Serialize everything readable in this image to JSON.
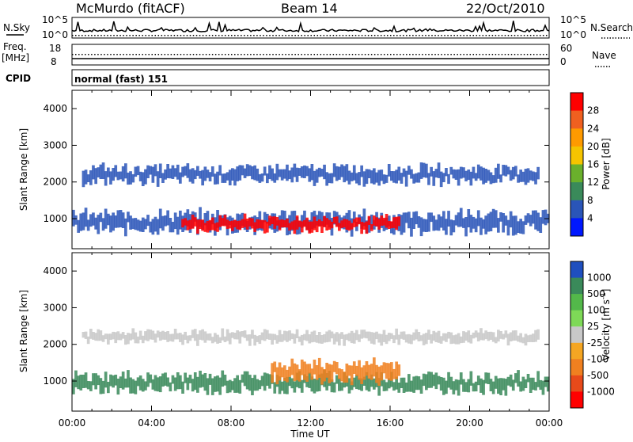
{
  "header": {
    "station": "McMurdo (fitACF)",
    "beam": "Beam 14",
    "date": "22/Oct/2010"
  },
  "top_panels": {
    "nsky_label": "N.Sky",
    "nsky_ticks": [
      "10^5",
      "10^0"
    ],
    "nsearch_label": "N.Search",
    "nsearch_ticks": [
      "10^5",
      "10^0"
    ],
    "freq_label_1": "Freq.",
    "freq_label_2": "[MHz]",
    "freq_ticks": [
      "18",
      "8"
    ],
    "nave_label": "Nave",
    "nave_ticks": [
      "60",
      "0"
    ],
    "cpid_label": "CPID",
    "cpid_value": "normal (fast) 151"
  },
  "chart_data": [
    {
      "type": "heatmap",
      "name": "power-panel",
      "ylabel": "Slant Range [km]",
      "xlabel": "",
      "x_ticks": [
        "00:00",
        "04:00",
        "08:00",
        "12:00",
        "16:00",
        "20:00",
        "00:00"
      ],
      "x_range_hours": [
        0,
        24
      ],
      "ylim": [
        180,
        4500
      ],
      "y_ticks": [
        1000,
        2000,
        3000,
        4000
      ],
      "colorbar": {
        "label": "Power [dB]",
        "ticks": [
          "28",
          "24",
          "20",
          "16",
          "12",
          "8",
          "4"
        ],
        "colors": [
          "#ff0000",
          "#f06020",
          "#ff9a00",
          "#f5c400",
          "#6ab02c",
          "#3a8a5a",
          "#2a55b8",
          "#0018ff"
        ]
      },
      "bands": [
        {
          "start_h": 0.0,
          "end_h": 24.0,
          "range_center_km": 900,
          "range_width_km": 500,
          "color": "#2a55b8"
        },
        {
          "start_h": 0.5,
          "end_h": 23.5,
          "range_center_km": 2200,
          "range_width_km": 420,
          "color": "#2a55b8"
        },
        {
          "start_h": 5.5,
          "end_h": 16.5,
          "range_center_km": 850,
          "range_width_km": 350,
          "color": "#ff0000"
        }
      ]
    },
    {
      "type": "heatmap",
      "name": "velocity-panel",
      "ylabel": "Slant Range [km]",
      "xlabel": "Time UT",
      "x_ticks": [
        "00:00",
        "04:00",
        "08:00",
        "12:00",
        "16:00",
        "20:00",
        "00:00"
      ],
      "x_range_hours": [
        0,
        24
      ],
      "ylim": [
        180,
        4500
      ],
      "y_ticks": [
        1000,
        2000,
        3000,
        4000
      ],
      "colorbar": {
        "label": "Velocity [m s",
        "label_sup": "-1",
        "label_end": "]",
        "ticks": [
          "1000",
          "500",
          "100",
          "25",
          "-25",
          "-100",
          "-500",
          "-1000"
        ],
        "colors": [
          "#1f4fbf",
          "#3a8a5a",
          "#53b84a",
          "#7ed957",
          "#c8c8c8",
          "#f5a623",
          "#f08020",
          "#e84a1a",
          "#ff0000"
        ]
      },
      "bands": [
        {
          "start_h": 0.0,
          "end_h": 24.0,
          "range_center_km": 950,
          "range_width_km": 450,
          "color": "#3a8a5a"
        },
        {
          "start_h": 0.5,
          "end_h": 23.5,
          "range_center_km": 2200,
          "range_width_km": 300,
          "color": "#c8c8c8"
        },
        {
          "start_h": 10.0,
          "end_h": 16.5,
          "range_center_km": 1250,
          "range_width_km": 500,
          "color": "#f08020"
        }
      ]
    }
  ]
}
